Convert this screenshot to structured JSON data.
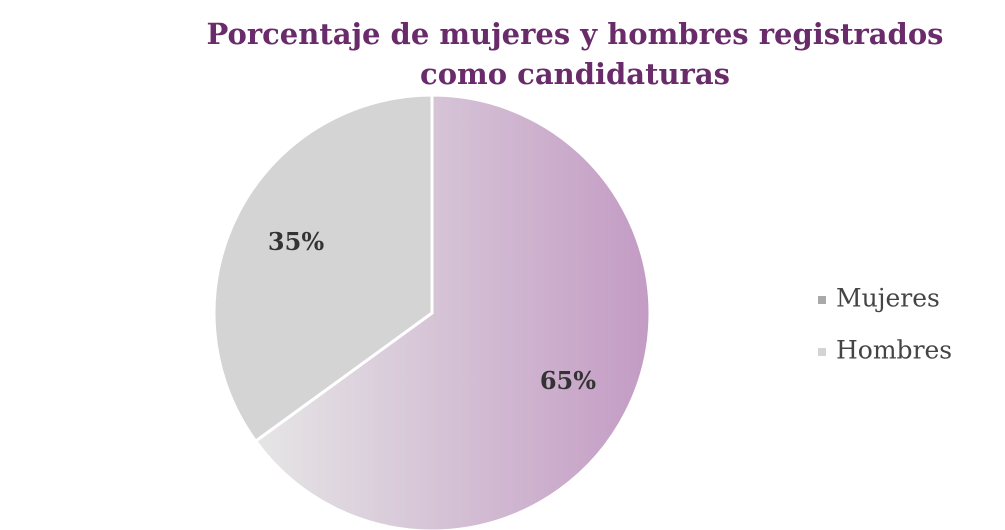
{
  "chart_data": {
    "type": "pie",
    "title": "Porcentaje de mujeres y hombres registrados como candidaturas",
    "categories": [
      "Mujeres",
      "Hombres"
    ],
    "values": [
      65,
      35
    ],
    "value_labels": [
      "65%",
      "35%"
    ],
    "colors": [
      "#c39bc4",
      "#d4d4d4"
    ],
    "legend": "right"
  }
}
